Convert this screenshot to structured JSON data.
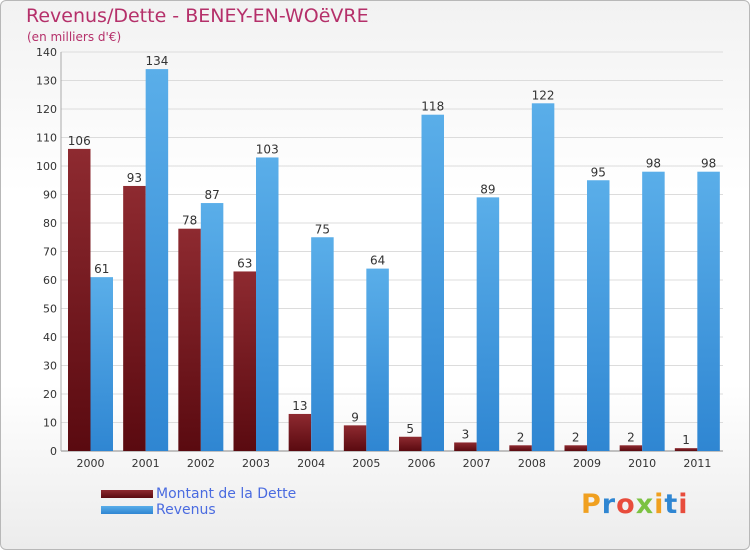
{
  "title": "Revenus/Dette - BENEY-EN-WOëVRE",
  "subtitle": "(en milliers d'€)",
  "legend": [
    {
      "label": "Montant de la Dette",
      "color": "#7a1a1f"
    },
    {
      "label": "Revenus",
      "color": "#4aa0e4"
    }
  ],
  "logo": {
    "text": "Proxiti"
  },
  "chart_data": {
    "type": "bar",
    "categories": [
      "2000",
      "2001",
      "2002",
      "2003",
      "2004",
      "2005",
      "2006",
      "2007",
      "2008",
      "2009",
      "2010",
      "2011"
    ],
    "series": [
      {
        "name": "Montant de la Dette",
        "color": "#7a1a1f",
        "values": [
          106,
          93,
          78,
          63,
          13,
          9,
          5,
          3,
          2,
          2,
          2,
          1
        ]
      },
      {
        "name": "Revenus",
        "color": "#4aa0e4",
        "values": [
          61,
          134,
          87,
          103,
          75,
          64,
          118,
          89,
          122,
          95,
          98,
          98
        ]
      }
    ],
    "ylim": [
      0,
      140
    ],
    "yticks": [
      0,
      10,
      20,
      30,
      40,
      50,
      60,
      70,
      80,
      90,
      100,
      110,
      120,
      130,
      140
    ],
    "grid": true,
    "legend_position": "bottom-left"
  }
}
